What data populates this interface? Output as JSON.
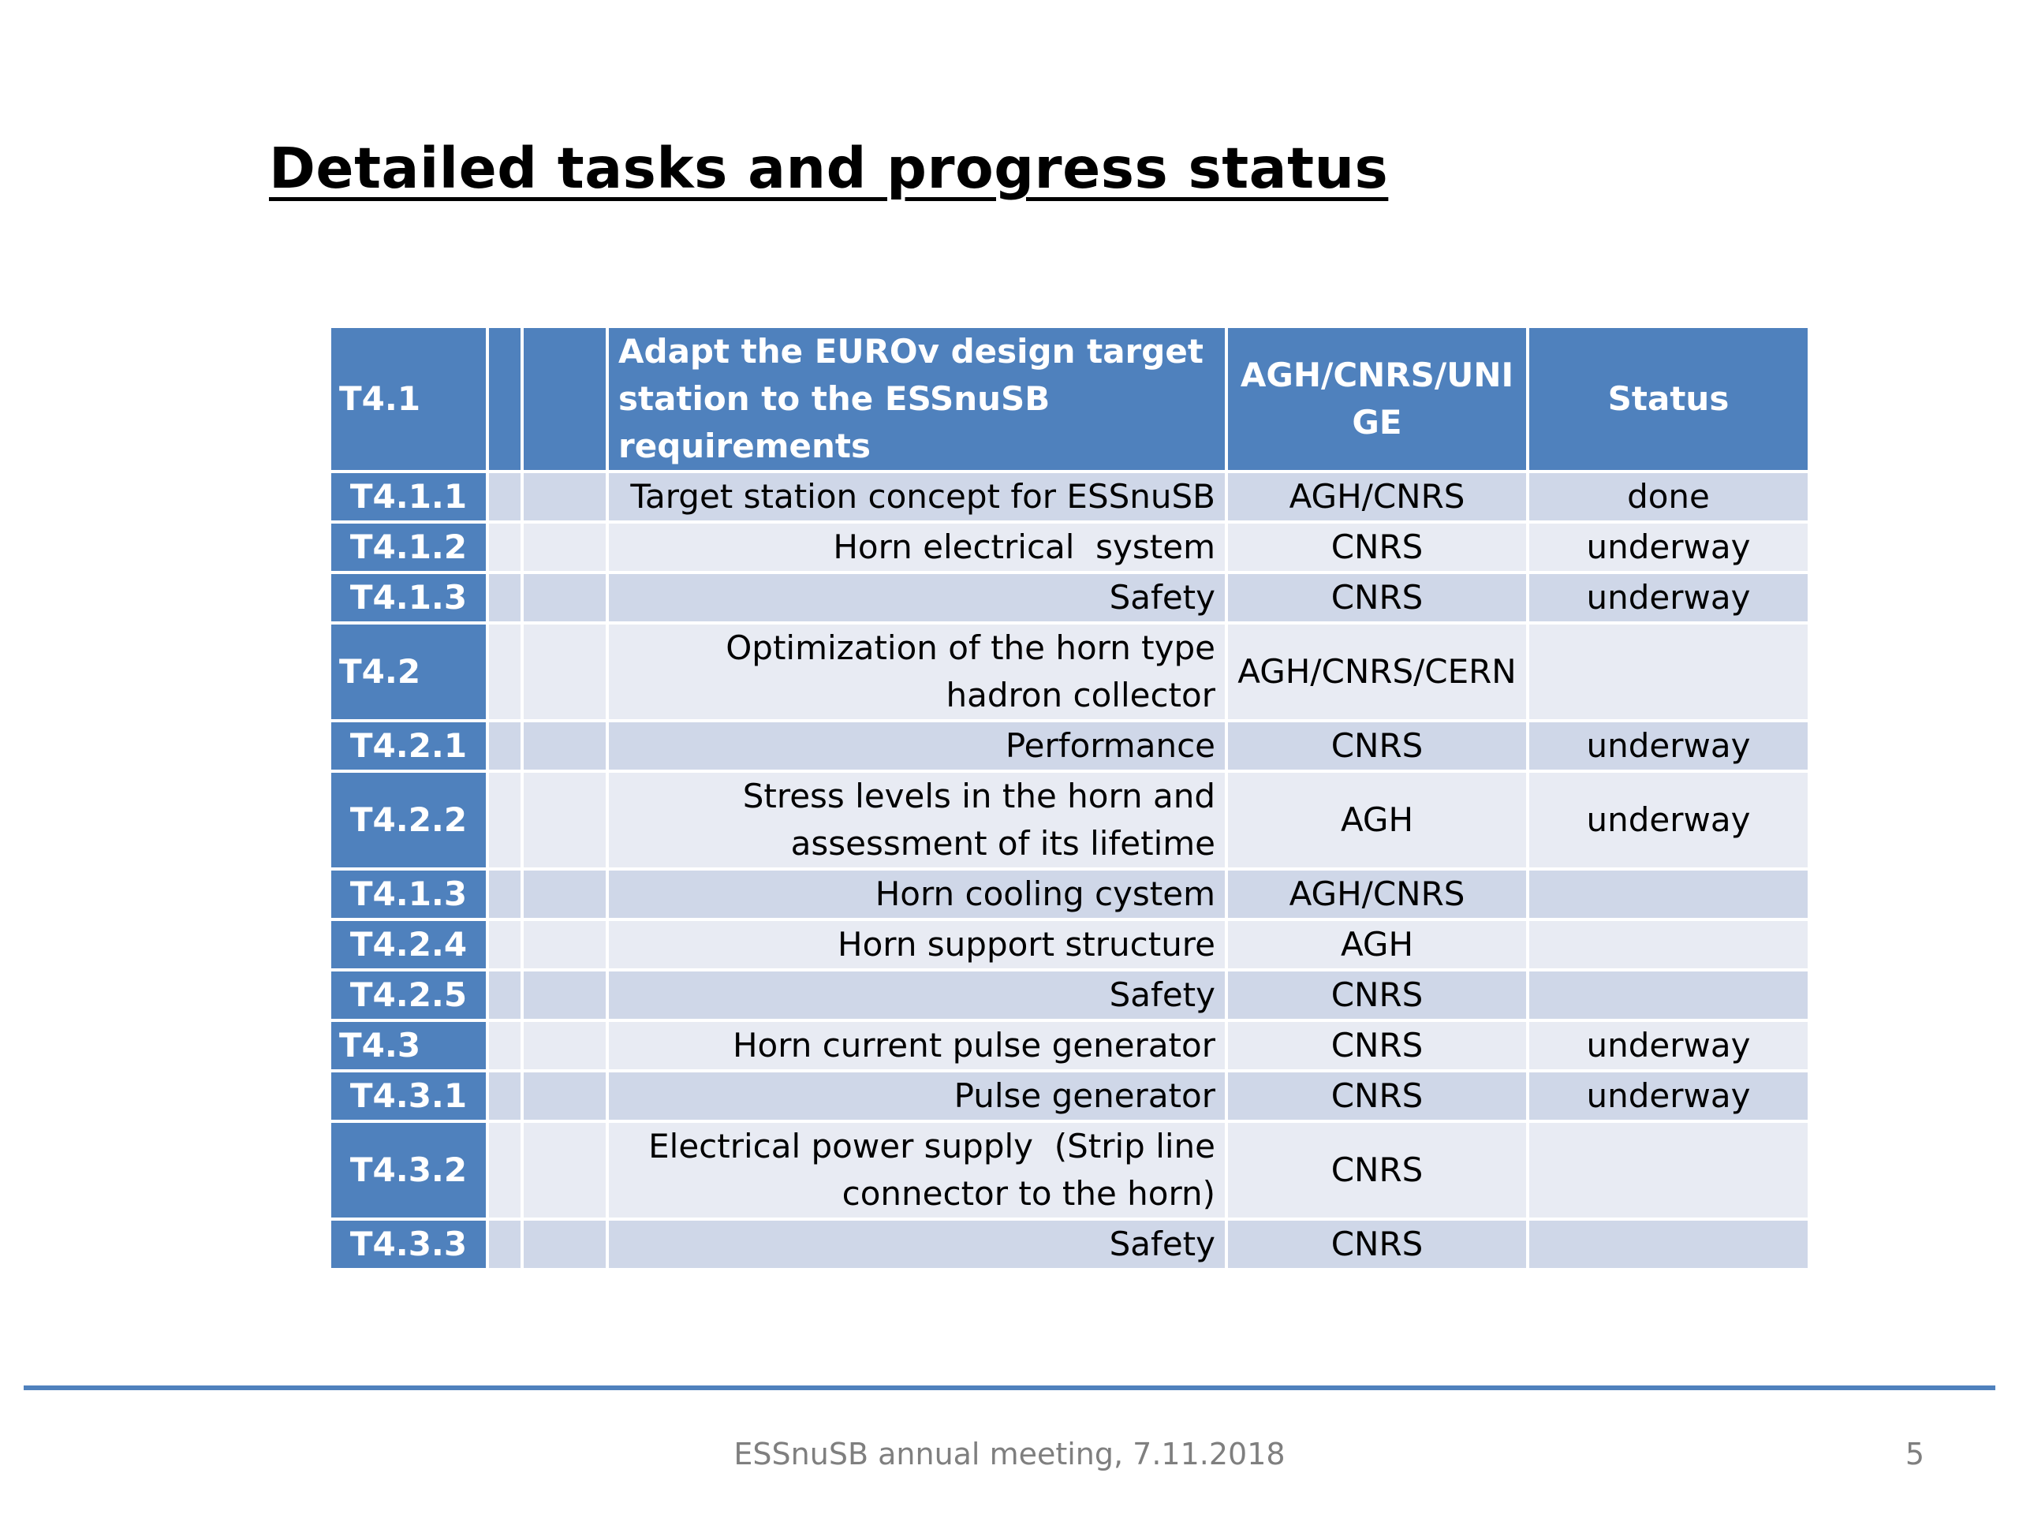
{
  "slide": {
    "title": "Detailed tasks and progress status",
    "footer": "ESSnuSB annual meeting, 7.11.2018",
    "page_number": "5"
  },
  "table": {
    "header": {
      "id": "T4.1",
      "description": "Adapt the EUROv design target station to the ESSnuSB requirements",
      "partners": "AGH/CNRS/UNI GE",
      "status": "Status"
    },
    "rows": [
      {
        "id": "T4.1.1",
        "description": "Target station concept for ESSnuSB",
        "partners": "AGH/CNRS",
        "status": "done"
      },
      {
        "id": "T4.1.2",
        "description": "Horn electrical  system",
        "partners": "CNRS",
        "status": "underway"
      },
      {
        "id": "T4.1.3",
        "description": "Safety",
        "partners": "CNRS",
        "status": "underway"
      },
      {
        "id": "T4.2",
        "description": "Optimization of the horn type hadron collector",
        "partners": "AGH/CNRS/CERN",
        "status": ""
      },
      {
        "id": "T4.2.1",
        "description": "Performance",
        "partners": "CNRS",
        "status": "underway"
      },
      {
        "id": "T4.2.2",
        "description": "Stress levels in the horn and assessment of its lifetime",
        "partners": "AGH",
        "status": "underway"
      },
      {
        "id": "T4.1.3",
        "description": "Horn cooling cystem",
        "partners": "AGH/CNRS",
        "status": ""
      },
      {
        "id": "T4.2.4",
        "description": "Horn support structure",
        "partners": "AGH",
        "status": ""
      },
      {
        "id": "T4.2.5",
        "description": "Safety",
        "partners": "CNRS",
        "status": ""
      },
      {
        "id": "T4.3",
        "description": "Horn current pulse generator",
        "partners": "CNRS",
        "status": "underway"
      },
      {
        "id": "T4.3.1",
        "description": "Pulse generator",
        "partners": "CNRS",
        "status": "underway"
      },
      {
        "id": "T4.3.2",
        "description": "Electrical power supply  (Strip line connector to the horn)",
        "partners": "CNRS",
        "status": ""
      },
      {
        "id": "T4.3.3",
        "description": "Safety",
        "partners": "CNRS",
        "status": ""
      }
    ]
  }
}
